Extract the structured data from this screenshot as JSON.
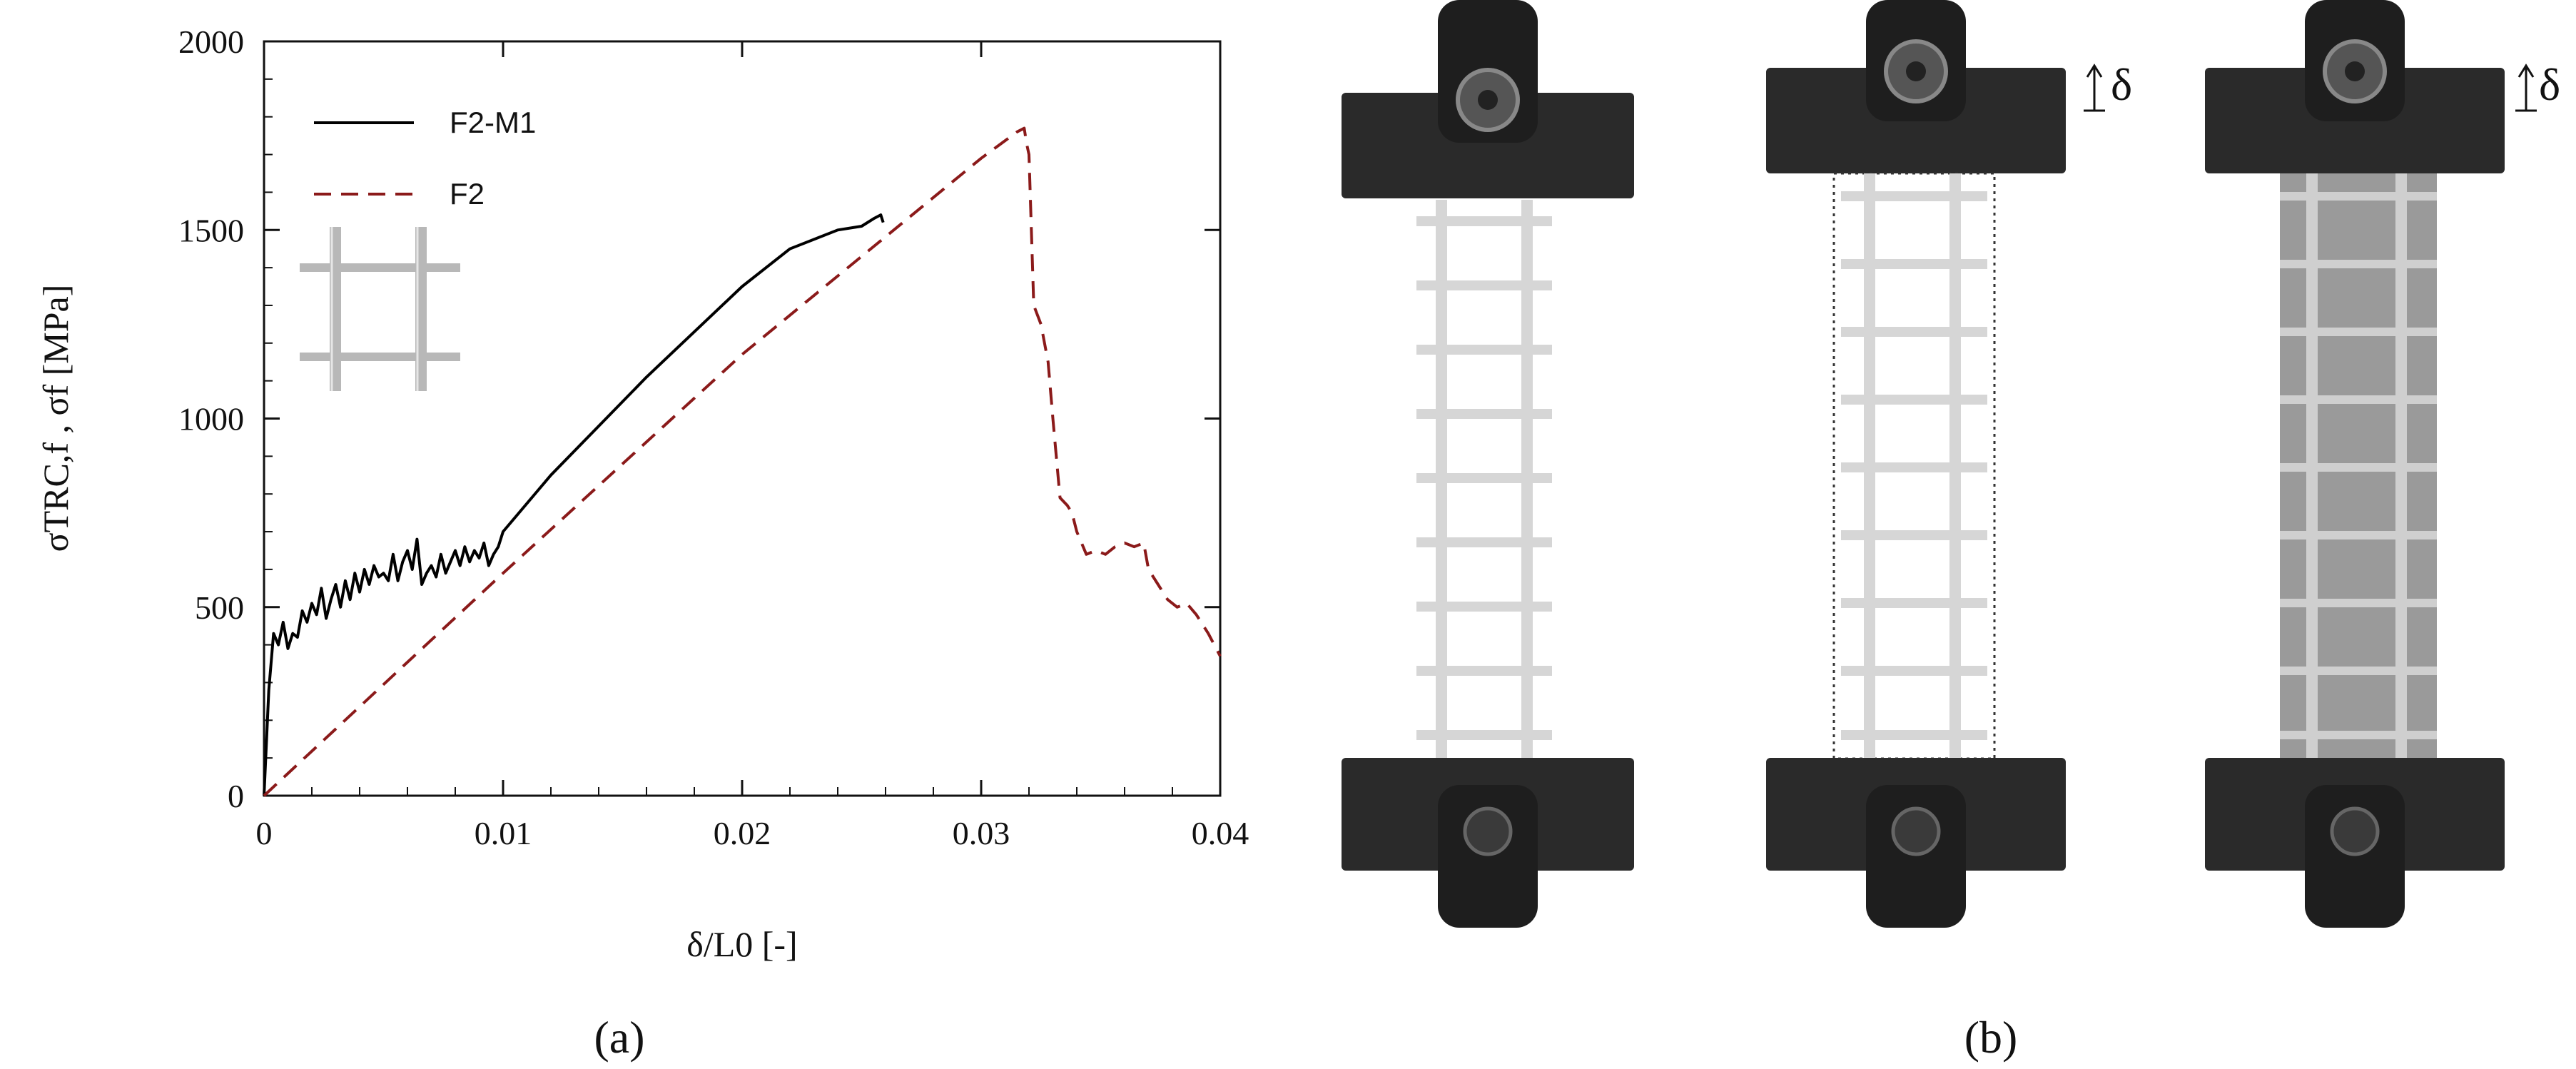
{
  "chart_data": {
    "type": "line",
    "xlabel": "δ/L0 [-]",
    "ylabel": "σTRC,f , σf [MPa]",
    "xlim": [
      0,
      0.04
    ],
    "ylim": [
      0,
      2000
    ],
    "x_ticks": [
      "0",
      "0.01",
      "0.02",
      "0.03",
      "0.04"
    ],
    "y_ticks": [
      "0",
      "500",
      "1000",
      "1500",
      "2000"
    ],
    "grid": false,
    "legend_position": "top-left",
    "series": [
      {
        "name": "F2-M1",
        "style": "solid",
        "color": "#000000",
        "x": [
          0,
          0.0002,
          0.0004,
          0.0006,
          0.0008,
          0.001,
          0.0012,
          0.0014,
          0.0016,
          0.0018,
          0.002,
          0.0022,
          0.0024,
          0.0026,
          0.0028,
          0.003,
          0.0032,
          0.0034,
          0.0036,
          0.0038,
          0.004,
          0.0042,
          0.0044,
          0.0046,
          0.0048,
          0.005,
          0.0052,
          0.0054,
          0.0056,
          0.0058,
          0.006,
          0.0062,
          0.0064,
          0.0066,
          0.0068,
          0.007,
          0.0072,
          0.0074,
          0.0076,
          0.0078,
          0.008,
          0.0082,
          0.0084,
          0.0086,
          0.0088,
          0.009,
          0.0092,
          0.0094,
          0.0096,
          0.0098,
          0.01,
          0.012,
          0.014,
          0.016,
          0.018,
          0.02,
          0.022,
          0.024,
          0.025,
          0.0255,
          0.0258,
          0.0259
        ],
        "y": [
          0,
          280,
          430,
          400,
          460,
          390,
          430,
          420,
          490,
          460,
          510,
          480,
          550,
          470,
          520,
          560,
          500,
          570,
          520,
          590,
          540,
          600,
          560,
          610,
          580,
          590,
          570,
          640,
          570,
          620,
          650,
          600,
          680,
          560,
          590,
          610,
          580,
          640,
          590,
          620,
          650,
          610,
          660,
          620,
          650,
          630,
          670,
          610,
          640,
          660,
          700,
          850,
          980,
          1110,
          1230,
          1350,
          1450,
          1500,
          1510,
          1530,
          1540,
          1520
        ]
      },
      {
        "name": "F2",
        "style": "dashed",
        "color": "#8b1a1a",
        "x": [
          0,
          0.01,
          0.02,
          0.03,
          0.0315,
          0.0318,
          0.0319,
          0.032,
          0.0322,
          0.0325,
          0.0328,
          0.033,
          0.0333,
          0.0336,
          0.0338,
          0.034,
          0.0344,
          0.0348,
          0.0352,
          0.0356,
          0.036,
          0.0364,
          0.0368,
          0.037,
          0.0374,
          0.0378,
          0.0382,
          0.0386,
          0.039,
          0.0395,
          0.04
        ],
        "y": [
          0,
          590,
          1170,
          1690,
          1760,
          1770,
          1730,
          1700,
          1300,
          1250,
          1150,
          1000,
          790,
          770,
          750,
          700,
          640,
          650,
          640,
          660,
          670,
          660,
          670,
          600,
          560,
          520,
          500,
          510,
          480,
          430,
          370
        ]
      }
    ]
  },
  "panel_labels": {
    "a": "(a)",
    "b": "(b)"
  },
  "specimen_photos": {
    "delta_label_1": "δ",
    "delta_label_2": "δ",
    "colors": {
      "grip": "#2a2a2a",
      "mesh": "#d9d9d9",
      "matrix": "#9a9a9a"
    }
  }
}
